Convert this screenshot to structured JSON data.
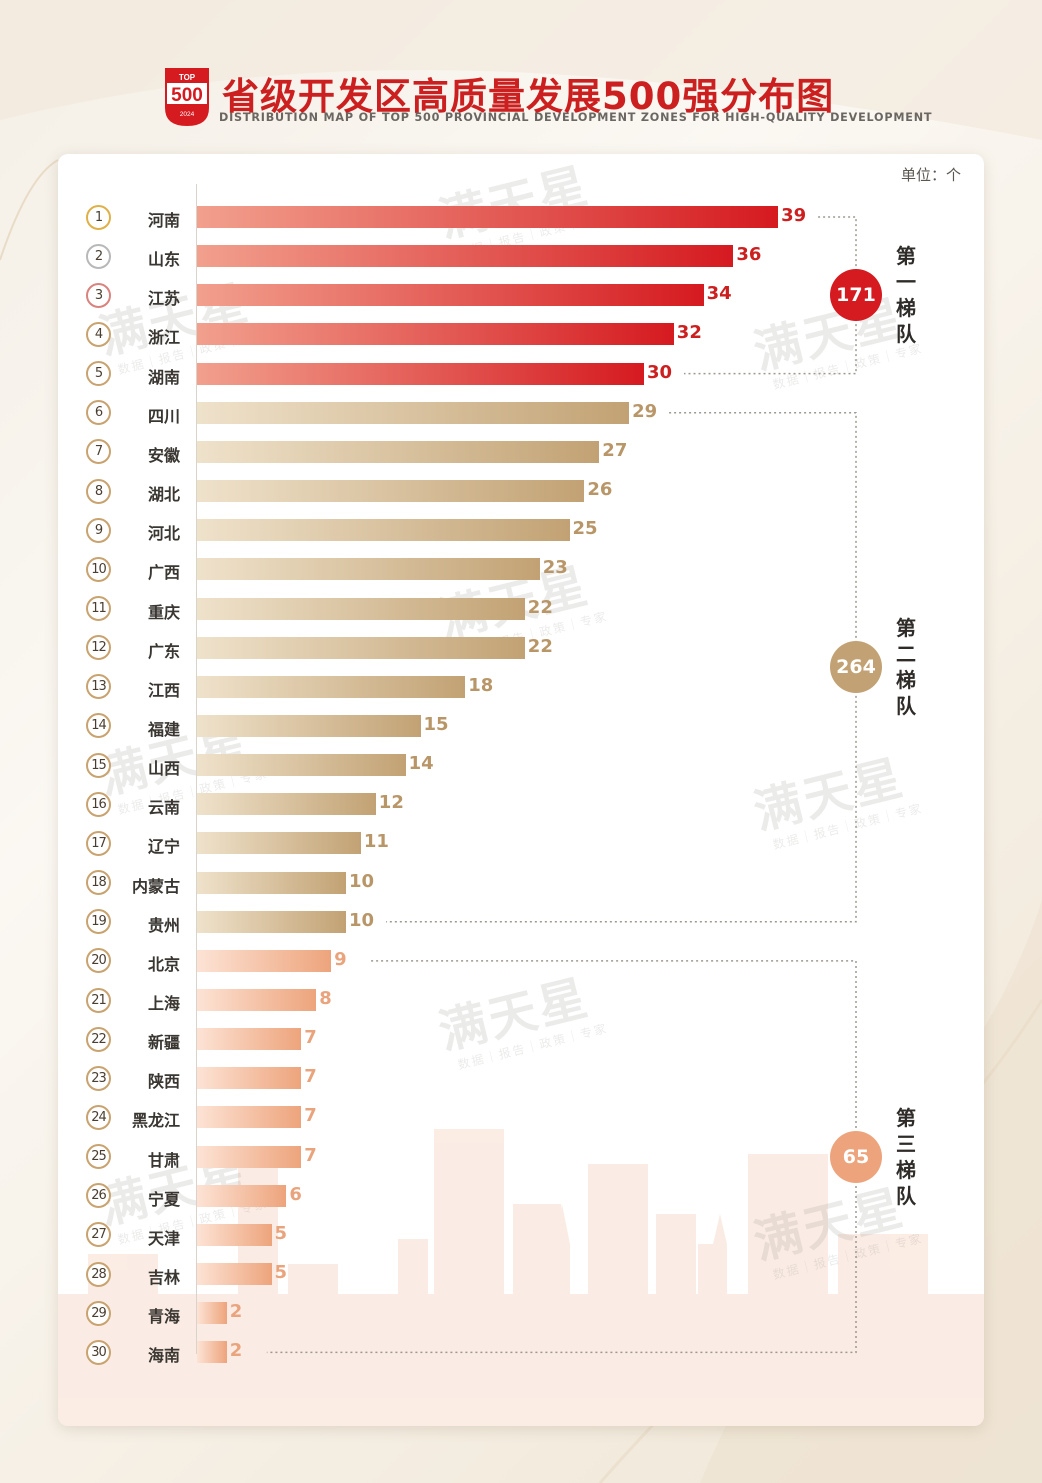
{
  "header": {
    "logo_top": "TOP",
    "logo_num": "500",
    "logo_year": "2024",
    "title": "省级开发区高质量发展500强分布图",
    "subtitle": "DISTRIBUTION MAP OF TOP 500 PROVINCIAL DEVELOPMENT ZONES FOR HIGH-QUALITY DEVELOPMENT"
  },
  "unit_label": "单位：个",
  "watermark": {
    "main": "满天星",
    "sub": "数据｜报告｜政策｜专家"
  },
  "colors": {
    "tier1_start": "#f2a08e",
    "tier1_end": "#d51a20",
    "tier1_text": "#cc1f1f",
    "tier2_start": "#efe2cb",
    "tier2_end": "#c2a274",
    "tier2_text": "#b89668",
    "tier3_start": "#fde3d5",
    "tier3_end": "#eda47c",
    "tier3_text": "#e9a47e"
  },
  "chart_data": {
    "type": "bar",
    "orientation": "horizontal",
    "ranks": [
      "1",
      "2",
      "3",
      "4",
      "5",
      "6",
      "7",
      "8",
      "9",
      "10",
      "11",
      "12",
      "13",
      "14",
      "15",
      "16",
      "17",
      "18",
      "19",
      "20",
      "21",
      "22",
      "23",
      "24",
      "25",
      "26",
      "27",
      "28",
      "29",
      "30"
    ],
    "categories": [
      "河南",
      "山东",
      "江苏",
      "浙江",
      "湖南",
      "四川",
      "安徽",
      "湖北",
      "河北",
      "广西",
      "重庆",
      "广东",
      "江西",
      "福建",
      "山西",
      "云南",
      "辽宁",
      "内蒙古",
      "贵州",
      "北京",
      "上海",
      "新疆",
      "陕西",
      "黑龙江",
      "甘肃",
      "宁夏",
      "天津",
      "吉林",
      "青海",
      "海南"
    ],
    "values": [
      39,
      36,
      34,
      32,
      30,
      29,
      27,
      26,
      25,
      23,
      22,
      22,
      18,
      15,
      14,
      12,
      11,
      10,
      10,
      9,
      8,
      7,
      7,
      7,
      7,
      6,
      5,
      5,
      2,
      2
    ],
    "unit": "个",
    "tiers": [
      {
        "name": "第一梯队",
        "total": 171,
        "from": 0,
        "to": 4,
        "color": "#d51a20"
      },
      {
        "name": "第二梯队",
        "total": 264,
        "from": 5,
        "to": 18,
        "color": "#c2a274"
      },
      {
        "name": "第三梯队",
        "total": 65,
        "from": 19,
        "to": 29,
        "color": "#eda47c"
      }
    ]
  }
}
